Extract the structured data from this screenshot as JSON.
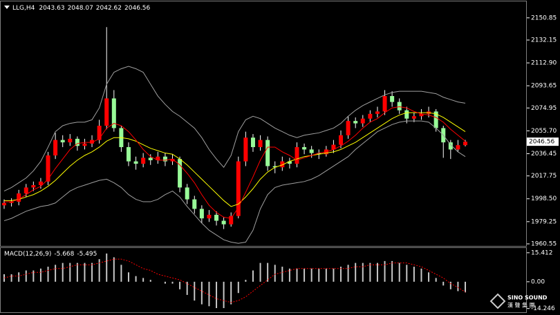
{
  "chart_data": [
    {
      "type": "candlestick",
      "title": "LLG,H4",
      "open": [
        1993,
        1995,
        1996,
        2003,
        2008,
        2010,
        2013,
        2035,
        2048,
        2046,
        2049,
        2043,
        2045,
        2048,
        2060,
        2083,
        2058,
        2042,
        2030,
        2028,
        2033,
        2031,
        2034,
        2030,
        2032,
        2008,
        1998,
        1990,
        1982,
        1985,
        1980,
        1977,
        1984,
        2030,
        2050,
        2042,
        2048,
        2026,
        2025,
        2030,
        2028,
        2042,
        2040,
        2037,
        2036,
        2040,
        2044,
        2052,
        2064,
        2062,
        2066,
        2070,
        2072,
        2085,
        2080,
        2073,
        2066,
        2068,
        2070,
        2072,
        2058,
        2046,
        2040,
        2043.63
      ],
      "high": [
        1998,
        1999,
        2006,
        2011,
        2013,
        2016,
        2038,
        2054,
        2052,
        2053,
        2051,
        2049,
        2052,
        2065,
        2143,
        2090,
        2060,
        2046,
        2034,
        2037,
        2036,
        2038,
        2037,
        2036,
        2034,
        2011,
        2001,
        1993,
        1989,
        1988,
        1983,
        1987,
        2034,
        2055,
        2053,
        2052,
        2051,
        2030,
        2034,
        2033,
        2046,
        2045,
        2043,
        2040,
        2043,
        2048,
        2056,
        2068,
        2067,
        2069,
        2073,
        2076,
        2090,
        2089,
        2083,
        2076,
        2071,
        2074,
        2076,
        2074,
        2060,
        2048,
        2048,
        2048.07
      ],
      "low": [
        1990,
        1992,
        1993,
        2000,
        2005,
        2007,
        2010,
        2032,
        2042,
        2043,
        2039,
        2040,
        2042,
        2045,
        2057,
        2055,
        2038,
        2026,
        2023,
        2025,
        2027,
        2028,
        2026,
        2027,
        2004,
        1994,
        1986,
        1978,
        1979,
        1976,
        1973,
        1975,
        1982,
        2026,
        2038,
        2039,
        2022,
        2020,
        2022,
        2024,
        2025,
        2036,
        2033,
        2032,
        2034,
        2037,
        2041,
        2049,
        2058,
        2059,
        2063,
        2067,
        2069,
        2076,
        2070,
        2062,
        2063,
        2065,
        2067,
        2055,
        2033,
        2032,
        2038,
        2042.62
      ],
      "close": [
        1995,
        1996,
        2003,
        2008,
        2010,
        2013,
        2035,
        2048,
        2046,
        2049,
        2043,
        2045,
        2048,
        2060,
        2083,
        2058,
        2042,
        2030,
        2028,
        2033,
        2031,
        2034,
        2030,
        2032,
        2008,
        1998,
        1990,
        1982,
        1985,
        1980,
        1977,
        1984,
        2030,
        2050,
        2042,
        2048,
        2026,
        2025,
        2030,
        2028,
        2042,
        2040,
        2037,
        2036,
        2040,
        2044,
        2052,
        2064,
        2062,
        2066,
        2070,
        2072,
        2085,
        2080,
        2073,
        2066,
        2068,
        2070,
        2072,
        2058,
        2046,
        2040,
        2043.63,
        2046.56
      ],
      "up_color": "#ff0000",
      "down_color": "#98fb98",
      "wick_color": "#ffffff",
      "lines": [
        {
          "color": "#a0a0a0",
          "values": [
            2005,
            2008,
            2012,
            2016,
            2022,
            2030,
            2042,
            2055,
            2060,
            2062,
            2063,
            2063,
            2065,
            2075,
            2095,
            2105,
            2108,
            2110,
            2108,
            2105,
            2095,
            2085,
            2078,
            2072,
            2068,
            2063,
            2058,
            2050,
            2040,
            2032,
            2025,
            2035,
            2055,
            2065,
            2068,
            2066,
            2062,
            2058,
            2055,
            2052,
            2050,
            2052,
            2053,
            2054,
            2056,
            2058,
            2062,
            2068,
            2073,
            2077,
            2080,
            2083,
            2086,
            2088,
            2089,
            2089,
            2089,
            2089,
            2088,
            2087,
            2084,
            2082,
            2080,
            2079
          ]
        },
        {
          "color": "#a0a0a0",
          "values": [
            1980,
            1982,
            1985,
            1988,
            1990,
            1992,
            1993,
            1995,
            2000,
            2005,
            2008,
            2010,
            2012,
            2014,
            2015,
            2012,
            2008,
            2002,
            1998,
            1996,
            1996,
            1998,
            2002,
            2005,
            2000,
            1992,
            1985,
            1978,
            1972,
            1968,
            1964,
            1962,
            1961,
            1962,
            1972,
            1990,
            2002,
            2008,
            2010,
            2011,
            2012,
            2013,
            2015,
            2018,
            2022,
            2026,
            2030,
            2034,
            2040,
            2045,
            2050,
            2055,
            2058,
            2061,
            2063,
            2064,
            2064,
            2064,
            2063,
            2058,
            2052,
            2044,
            2038,
            2034
          ]
        },
        {
          "color": "#ffff00",
          "values": [
            1997,
            1997,
            1998,
            2000,
            2002,
            2005,
            2009,
            2014,
            2020,
            2026,
            2031,
            2035,
            2038,
            2042,
            2047,
            2050,
            2050,
            2049,
            2047,
            2044,
            2041,
            2039,
            2037,
            2036,
            2032,
            2027,
            2021,
            2015,
            2009,
            2003,
            1997,
            1992,
            1994,
            2000,
            2007,
            2015,
            2021,
            2025,
            2027,
            2030,
            2032,
            2034,
            2035,
            2036,
            2037,
            2038,
            2040,
            2043,
            2046,
            2050,
            2054,
            2058,
            2062,
            2066,
            2069,
            2071,
            2071,
            2071,
            2071,
            2070,
            2067,
            2063,
            2059,
            2055
          ]
        },
        {
          "color": "#ff0000",
          "values": [
            1996,
            1996,
            1998,
            2002,
            2006,
            2009,
            2015,
            2024,
            2032,
            2040,
            2045,
            2046,
            2046,
            2049,
            2058,
            2062,
            2060,
            2055,
            2048,
            2040,
            2034,
            2031,
            2031,
            2032,
            2027,
            2020,
            2012,
            2002,
            1993,
            1987,
            1983,
            1982,
            1991,
            2004,
            2017,
            2031,
            2042,
            2042,
            2038,
            2035,
            2031,
            2033,
            2035,
            2037,
            2038,
            2040,
            2043,
            2047,
            2052,
            2058,
            2063,
            2066,
            2071,
            2075,
            2076,
            2075,
            2072,
            2070,
            2069,
            2067,
            2063,
            2057,
            2052,
            2047
          ]
        }
      ],
      "ylim": [
        1958.8,
        2164.7
      ],
      "yticks": [
        1960.55,
        1979.25,
        {
          "value": 1998.5,
          "label": "1998.50"
        },
        2017.75,
        2036.45,
        {
          "value": 2055.7,
          "label": "2055.70"
        },
        2074.95,
        2093.65,
        {
          "value": 2112.9,
          "label": "2112.90"
        },
        2132.15,
        2150.85
      ]
    },
    {
      "type": "macd",
      "title": "MACD(12,26,9)",
      "values": [
        4,
        4,
        5,
        6,
        6,
        7,
        8,
        9,
        10,
        10,
        10,
        10,
        10,
        12,
        15,
        13,
        9,
        5,
        3,
        2,
        1,
        0,
        -1,
        -1,
        -4,
        -7,
        -10,
        -12,
        -13,
        -14,
        -14,
        -12,
        -6,
        1,
        6,
        10,
        10,
        9,
        8,
        7,
        7,
        7,
        7,
        7,
        7,
        7,
        8,
        9,
        10,
        10,
        10,
        10,
        11,
        11,
        10,
        9,
        8,
        7,
        5,
        2,
        -2,
        -4,
        -5,
        -5.668
      ],
      "color": "#c8c8c8",
      "signal": {
        "color": "#ff0000",
        "values": [
          2,
          3,
          3,
          4,
          5,
          5,
          6,
          7,
          7,
          8,
          9,
          9,
          9,
          10,
          11,
          12,
          12,
          11,
          9,
          7,
          6,
          4,
          3,
          2,
          1,
          -1,
          -3,
          -5,
          -7,
          -9,
          -10,
          -11,
          -10,
          -8,
          -5,
          -2,
          1,
          4,
          5,
          6,
          7,
          7,
          7,
          7,
          7,
          7,
          7,
          7,
          8,
          8,
          9,
          9,
          9,
          10,
          10,
          10,
          9,
          8,
          6,
          4,
          2,
          -1,
          -3,
          -5.495
        ]
      },
      "ylim": [
        -16.2,
        18.3
      ],
      "yticks": [
        -14.246,
        {
          "value": 0,
          "label": "0.00"
        },
        15.412
      ]
    }
  ],
  "logo": {
    "text": "SINO SOUND",
    "subtitle": "漢 聲 集 團"
  }
}
